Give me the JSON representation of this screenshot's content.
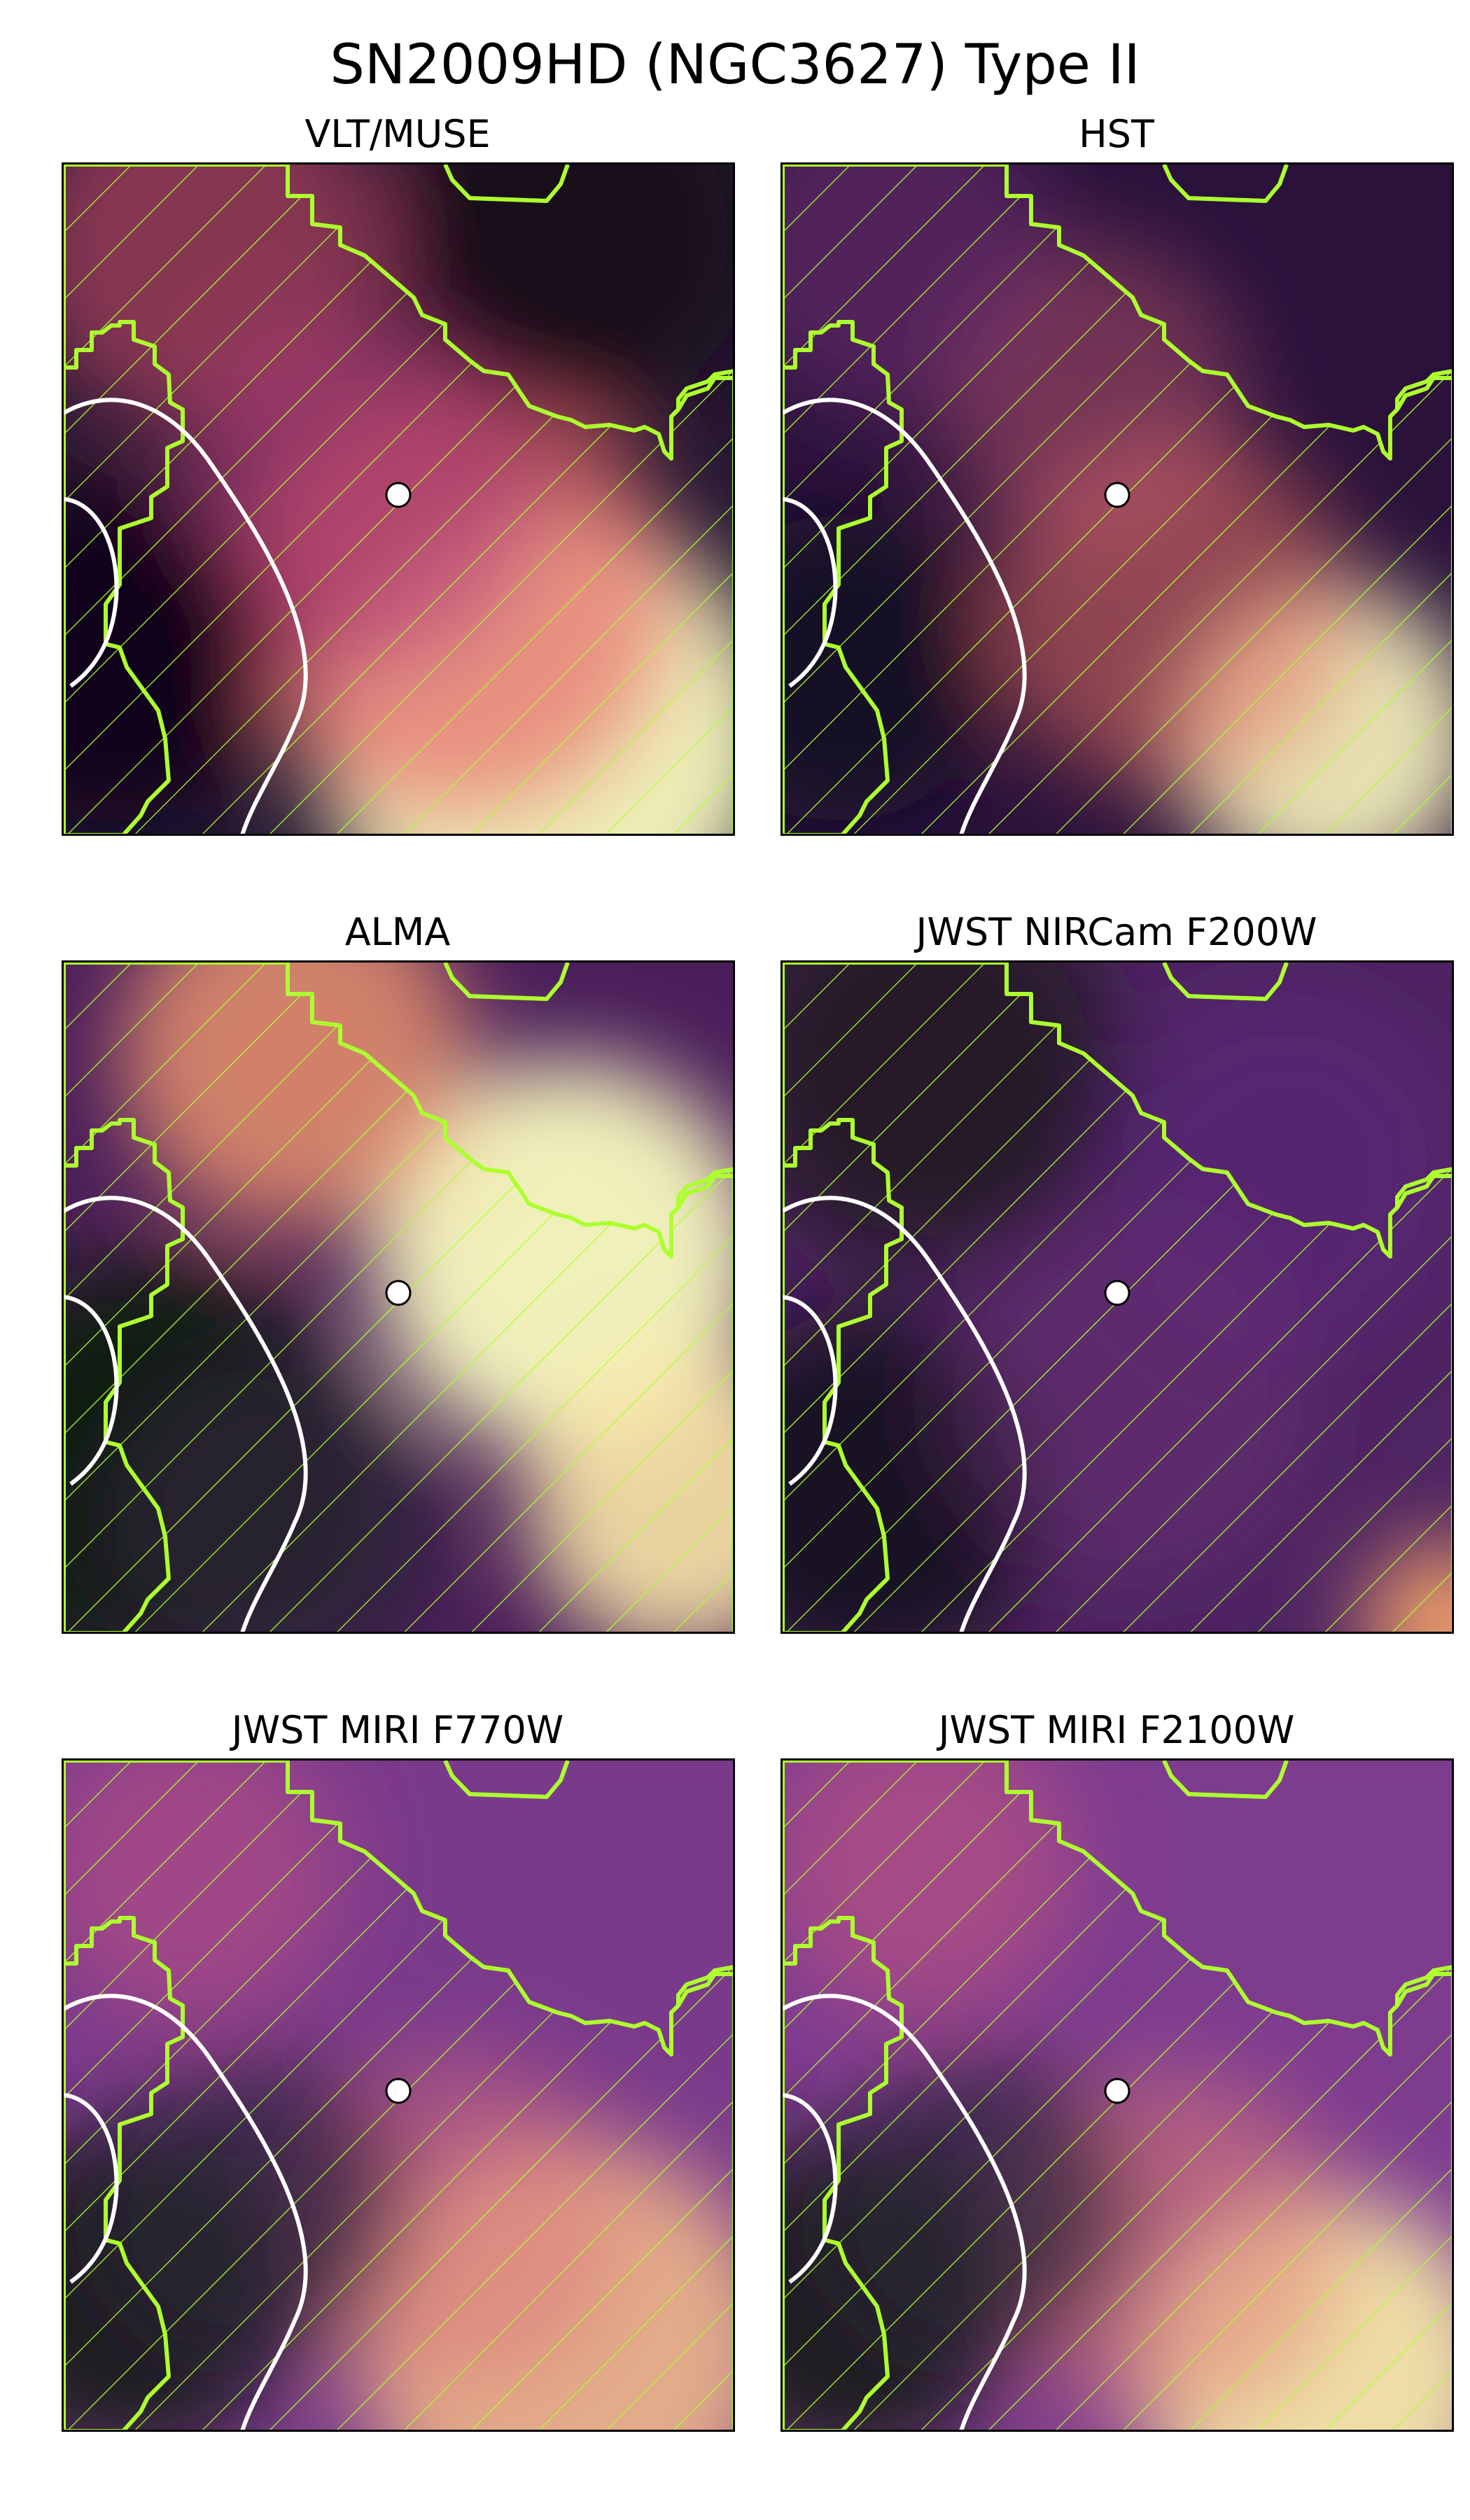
{
  "figure": {
    "title": "SN2009HD (NGC3627) Type II",
    "panels": [
      {
        "title": "VLT/MUSE",
        "style": "muse"
      },
      {
        "title": "HST",
        "style": "hst"
      },
      {
        "title": "ALMA",
        "style": "alma"
      },
      {
        "title": "JWST NIRCam F200W",
        "style": "nircam"
      },
      {
        "title": "JWST MIRI F770W",
        "style": "miri770"
      },
      {
        "title": "JWST MIRI F2100W",
        "style": "miri2100"
      }
    ],
    "colors": {
      "contour_green": "#adff2f",
      "contour_white": "#ffffff",
      "colormap": "magma",
      "marker_fill": "#ffffff",
      "marker_edge": "#000000"
    }
  }
}
